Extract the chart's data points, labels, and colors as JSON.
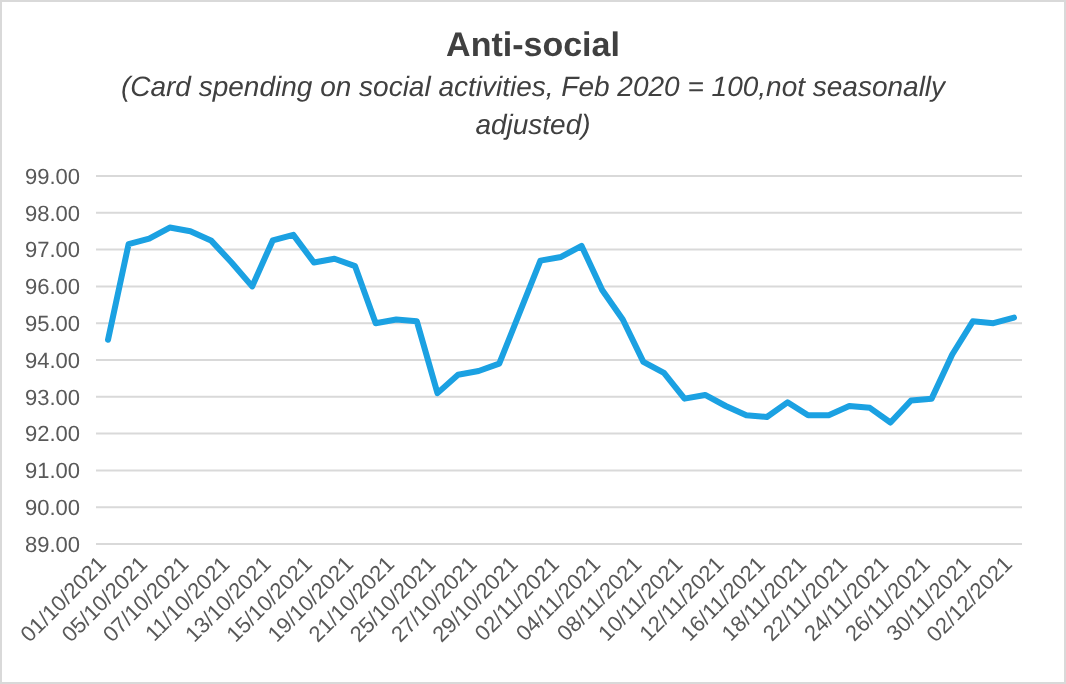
{
  "chart_data": {
    "type": "line",
    "title": "Anti-social",
    "subtitle": "(Card spending on social activities, Feb 2020 = 100,not seasonally adjusted)",
    "categories": [
      "01/10/2021",
      null,
      "05/10/2021",
      null,
      "07/10/2021",
      null,
      "11/10/2021",
      null,
      "13/10/2021",
      null,
      "15/10/2021",
      null,
      "19/10/2021",
      null,
      "21/10/2021",
      null,
      "25/10/2021",
      null,
      "27/10/2021",
      null,
      "29/10/2021",
      null,
      "02/11/2021",
      null,
      "04/11/2021",
      null,
      "08/11/2021",
      null,
      "10/11/2021",
      null,
      "12/11/2021",
      null,
      "16/11/2021",
      null,
      "18/11/2021",
      null,
      "22/11/2021",
      null,
      "24/11/2021",
      null,
      "26/11/2021",
      null,
      "30/11/2021",
      null,
      "02/12/2021"
    ],
    "series": [
      {
        "color": "#1ba1e2",
        "values": [
          94.55,
          97.15,
          97.3,
          97.6,
          97.5,
          97.25,
          96.65,
          96.0,
          97.25,
          97.4,
          96.65,
          96.75,
          96.55,
          95.0,
          95.1,
          95.05,
          93.1,
          93.6,
          93.7,
          93.9,
          95.3,
          96.7,
          96.8,
          97.1,
          95.9,
          95.1,
          93.95,
          93.65,
          92.95,
          93.05,
          92.75,
          92.5,
          92.45,
          92.85,
          92.5,
          92.5,
          92.75,
          92.7,
          92.3,
          92.9,
          92.95,
          94.15,
          95.05,
          95.0,
          95.15
        ]
      }
    ],
    "ylim": [
      89,
      99
    ],
    "yticks": [
      {
        "value": 89,
        "label": "89.00"
      },
      {
        "value": 90,
        "label": "90.00"
      },
      {
        "value": 91,
        "label": "91.00"
      },
      {
        "value": 92,
        "label": "92.00"
      },
      {
        "value": 93,
        "label": "93.00"
      },
      {
        "value": 94,
        "label": "94.00"
      },
      {
        "value": 95,
        "label": "95.00"
      },
      {
        "value": 96,
        "label": "96.00"
      },
      {
        "value": 97,
        "label": "97.00"
      },
      {
        "value": 98,
        "label": "98.00"
      },
      {
        "value": 99,
        "label": "99.00"
      }
    ],
    "grid": "y"
  }
}
